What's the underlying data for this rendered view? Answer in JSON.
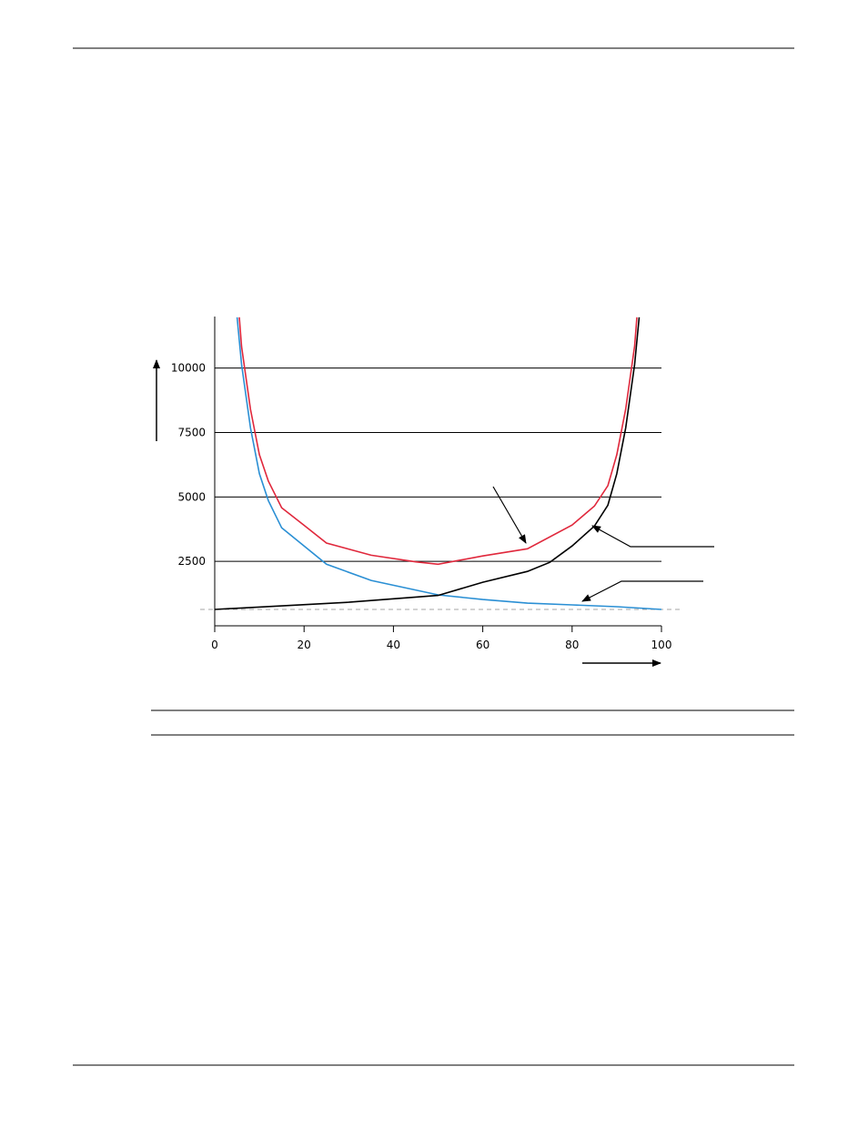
{
  "chart_data": {
    "type": "line",
    "xlim": [
      0,
      100
    ],
    "xticks": [
      0,
      20,
      40,
      60,
      80,
      100
    ],
    "ylim": [
      0,
      12000
    ],
    "yticks": [
      2500,
      5000,
      7500,
      10000
    ],
    "grid": true,
    "reference_line": 634,
    "series": [
      {
        "color": "#2a8fd4",
        "x": [
          5,
          6,
          8,
          10,
          12,
          15,
          20,
          25,
          35,
          50,
          60,
          70,
          80,
          90,
          100
        ],
        "values": [
          11970,
          10140,
          7680,
          5900,
          4860,
          3800,
          3100,
          2390,
          1760,
          1200,
          1020,
          880,
          810,
          740,
          634
        ]
      },
      {
        "color": "#000000",
        "x": [
          0,
          30,
          50,
          60,
          70,
          75,
          80,
          85,
          88,
          90,
          92,
          94,
          95
        ],
        "values": [
          634,
          915,
          1180,
          1690,
          2110,
          2465,
          3100,
          3870,
          4680,
          5900,
          7680,
          10140,
          11970
        ]
      },
      {
        "color": "#e0283c",
        "x": [
          5.5,
          6,
          8,
          10,
          12,
          15,
          20,
          25,
          35,
          45,
          50,
          60,
          70,
          80,
          85,
          88,
          90,
          92,
          94,
          94.5
        ],
        "values": [
          11970,
          10840,
          8400,
          6640,
          5620,
          4580,
          3900,
          3210,
          2740,
          2480,
          2390,
          2710,
          2990,
          3910,
          4645,
          5440,
          6640,
          8410,
          10860,
          11970
        ]
      }
    ]
  }
}
